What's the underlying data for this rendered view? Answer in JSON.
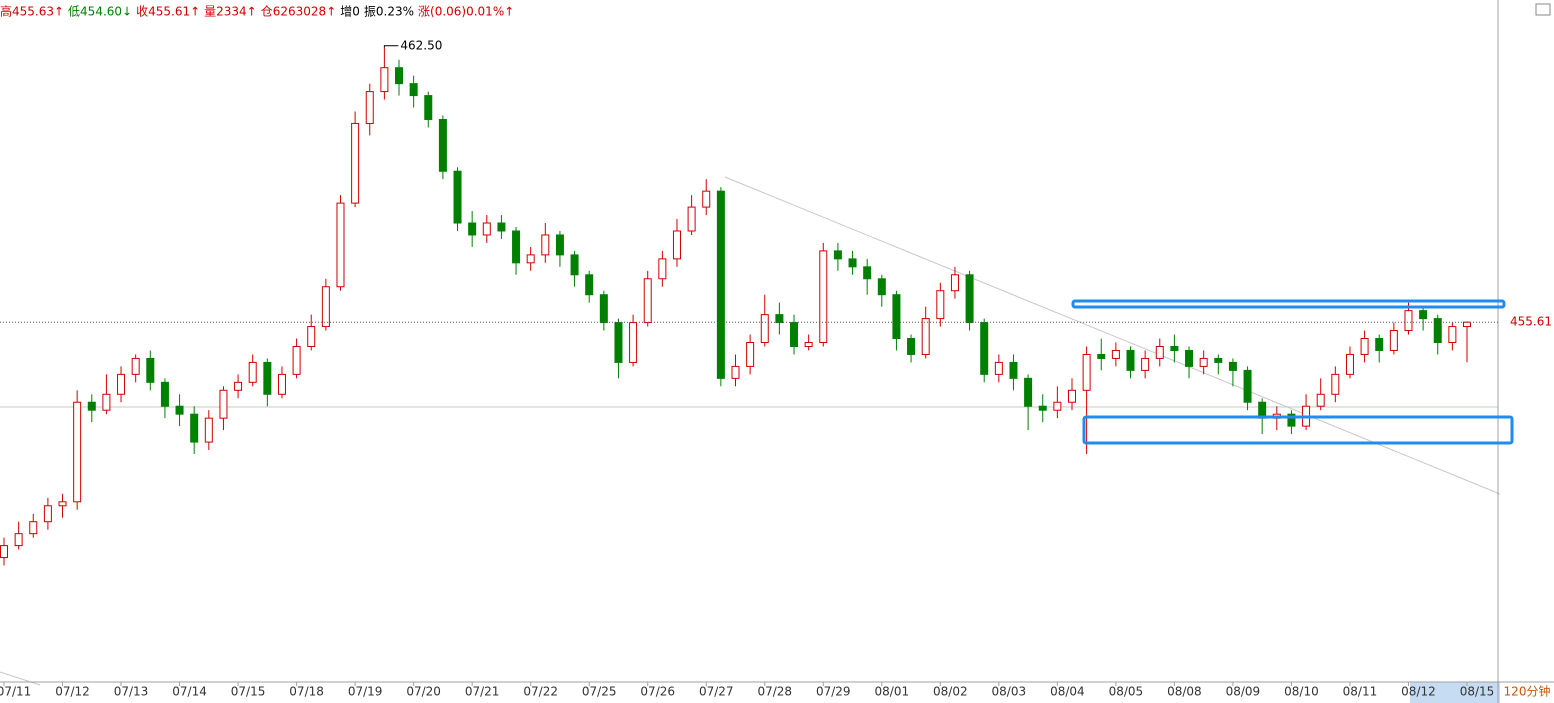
{
  "chart_data": {
    "type": "candlestick",
    "header": [
      {
        "text": "高455.63↑",
        "color": "#d00000"
      },
      {
        "text": "低454.60↓",
        "color": "#008000"
      },
      {
        "text": "收455.61↑",
        "color": "#d00000"
      },
      {
        "text": "量2334↑",
        "color": "#d00000"
      },
      {
        "text": "仓6263028↑",
        "color": "#d00000"
      },
      {
        "text": "增0",
        "color": "#000000"
      },
      {
        "text": "振0.23%",
        "color": "#000000"
      },
      {
        "text": "涨(0.06)0.01%↑",
        "color": "#d00000"
      }
    ],
    "period": "120分钟",
    "high_annotation": "462.50",
    "up_color": "#d00000",
    "down_color": "#008000",
    "ylim": [
      446.5,
      463.7
    ],
    "categories": [
      "07/11",
      null,
      null,
      null,
      "07/12",
      null,
      null,
      null,
      "07/13",
      null,
      null,
      null,
      "07/14",
      null,
      null,
      null,
      "07/15",
      null,
      null,
      null,
      "07/18",
      null,
      null,
      null,
      "07/19",
      null,
      null,
      null,
      "07/20",
      null,
      null,
      null,
      "07/21",
      null,
      null,
      null,
      "07/22",
      null,
      null,
      null,
      "07/25",
      null,
      null,
      null,
      "07/26",
      null,
      null,
      null,
      "07/27",
      null,
      null,
      null,
      "07/28",
      null,
      null,
      null,
      "07/29",
      null,
      null,
      null,
      "08/01",
      null,
      null,
      null,
      "08/02",
      null,
      null,
      null,
      "08/03",
      null,
      null,
      null,
      "08/04",
      null,
      null,
      null,
      "08/05",
      null,
      null,
      null,
      "08/08",
      null,
      null,
      null,
      "08/09",
      null,
      null,
      null,
      "08/10",
      null,
      null,
      null,
      "08/11",
      null,
      null,
      null,
      "08/12",
      null,
      null,
      null,
      "08/15"
    ],
    "open": [
      449.7,
      450.0,
      450.3,
      450.6,
      451.0,
      451.1,
      453.6,
      453.4,
      453.8,
      454.3,
      454.7,
      454.1,
      453.5,
      453.3,
      452.6,
      453.2,
      453.9,
      454.1,
      454.6,
      453.8,
      454.3,
      455.0,
      455.5,
      456.5,
      458.6,
      460.6,
      461.4,
      462.0,
      461.6,
      461.3,
      460.7,
      459.4,
      458.1,
      457.8,
      458.1,
      457.9,
      457.1,
      457.3,
      457.8,
      457.3,
      456.8,
      456.3,
      455.6,
      454.6,
      455.6,
      456.7,
      457.2,
      457.9,
      458.5,
      458.9,
      454.2,
      454.5,
      455.1,
      455.8,
      455.6,
      455.0,
      455.1,
      457.4,
      457.2,
      457.0,
      456.7,
      456.3,
      455.2,
      454.8,
      455.7,
      456.4,
      456.8,
      455.6,
      454.3,
      454.6,
      454.2,
      453.5,
      453.4,
      453.6,
      453.9,
      454.8,
      454.7,
      454.9,
      454.4,
      454.7,
      455.0,
      454.9,
      454.5,
      454.7,
      454.6,
      454.4,
      453.6,
      453.2,
      453.3,
      453.0,
      453.5,
      453.8,
      454.3,
      454.8,
      455.2,
      454.9,
      455.4,
      455.9,
      455.7,
      455.1,
      455.5
    ],
    "high": [
      450.2,
      450.6,
      450.8,
      451.2,
      451.3,
      453.9,
      453.8,
      454.3,
      454.5,
      454.8,
      454.9,
      454.2,
      453.8,
      453.5,
      453.4,
      454.0,
      454.3,
      454.8,
      454.7,
      454.5,
      455.2,
      455.8,
      456.7,
      458.8,
      460.9,
      461.6,
      462.5,
      462.2,
      461.8,
      461.4,
      460.8,
      459.5,
      458.4,
      458.3,
      458.3,
      458.0,
      457.5,
      458.1,
      457.9,
      457.4,
      456.9,
      456.4,
      455.7,
      455.8,
      456.9,
      457.4,
      458.2,
      458.8,
      459.2,
      459.0,
      454.8,
      455.3,
      456.3,
      456.1,
      455.8,
      455.3,
      457.6,
      457.6,
      457.4,
      457.2,
      456.8,
      456.4,
      455.3,
      456.0,
      456.6,
      457.0,
      456.9,
      455.7,
      454.8,
      454.8,
      454.3,
      453.8,
      454.0,
      454.2,
      455.0,
      455.2,
      455.1,
      455.0,
      454.9,
      455.2,
      455.3,
      455.0,
      454.9,
      454.8,
      454.7,
      454.5,
      453.7,
      453.5,
      453.4,
      453.8,
      454.2,
      454.5,
      455.0,
      455.4,
      455.3,
      455.6,
      456.1,
      456.0,
      455.8,
      455.6,
      455.63
    ],
    "low": [
      449.5,
      449.9,
      450.2,
      450.4,
      450.7,
      450.9,
      453.1,
      453.3,
      453.6,
      454.1,
      453.9,
      453.2,
      453.0,
      452.3,
      452.4,
      452.9,
      453.7,
      454.0,
      453.5,
      453.7,
      454.2,
      454.9,
      455.4,
      456.4,
      458.5,
      460.3,
      461.2,
      461.3,
      461.0,
      460.5,
      459.2,
      457.9,
      457.5,
      457.6,
      457.7,
      456.8,
      456.9,
      457.1,
      457.0,
      456.5,
      456.1,
      455.4,
      454.2,
      454.5,
      455.5,
      456.5,
      457.0,
      457.8,
      458.3,
      454.0,
      454.0,
      454.3,
      455.0,
      455.3,
      454.8,
      454.9,
      455.0,
      456.9,
      456.8,
      456.3,
      456.0,
      454.9,
      454.6,
      454.7,
      455.5,
      456.2,
      455.4,
      454.1,
      454.1,
      453.9,
      452.9,
      453.1,
      453.2,
      453.4,
      452.3,
      454.4,
      454.5,
      454.2,
      454.2,
      454.5,
      454.6,
      454.2,
      454.3,
      454.3,
      454.0,
      453.4,
      452.8,
      452.9,
      452.8,
      452.9,
      453.4,
      453.6,
      454.2,
      454.6,
      454.6,
      454.8,
      455.3,
      455.4,
      454.8,
      454.9,
      454.6
    ],
    "close": [
      450.0,
      450.3,
      450.6,
      451.0,
      451.1,
      453.6,
      453.4,
      453.8,
      454.3,
      454.7,
      454.1,
      453.5,
      453.3,
      452.6,
      453.2,
      453.9,
      454.1,
      454.6,
      453.8,
      454.3,
      455.0,
      455.5,
      456.5,
      458.6,
      460.6,
      461.4,
      462.0,
      461.6,
      461.3,
      460.7,
      459.4,
      458.1,
      457.8,
      458.1,
      457.9,
      457.1,
      457.3,
      457.8,
      457.3,
      456.8,
      456.3,
      455.6,
      454.6,
      455.6,
      456.7,
      457.2,
      457.9,
      458.5,
      458.9,
      454.2,
      454.5,
      455.1,
      455.8,
      455.6,
      455.0,
      455.1,
      457.4,
      457.2,
      457.0,
      456.7,
      456.3,
      455.2,
      454.8,
      455.7,
      456.4,
      456.8,
      455.6,
      454.3,
      454.6,
      454.2,
      453.5,
      453.4,
      453.6,
      453.9,
      454.8,
      454.7,
      454.9,
      454.4,
      454.7,
      455.0,
      454.9,
      454.5,
      454.7,
      454.6,
      454.4,
      453.6,
      453.2,
      453.3,
      453.0,
      453.5,
      453.8,
      454.3,
      454.8,
      455.2,
      454.9,
      455.4,
      455.9,
      455.7,
      455.1,
      455.5,
      455.61
    ]
  }
}
